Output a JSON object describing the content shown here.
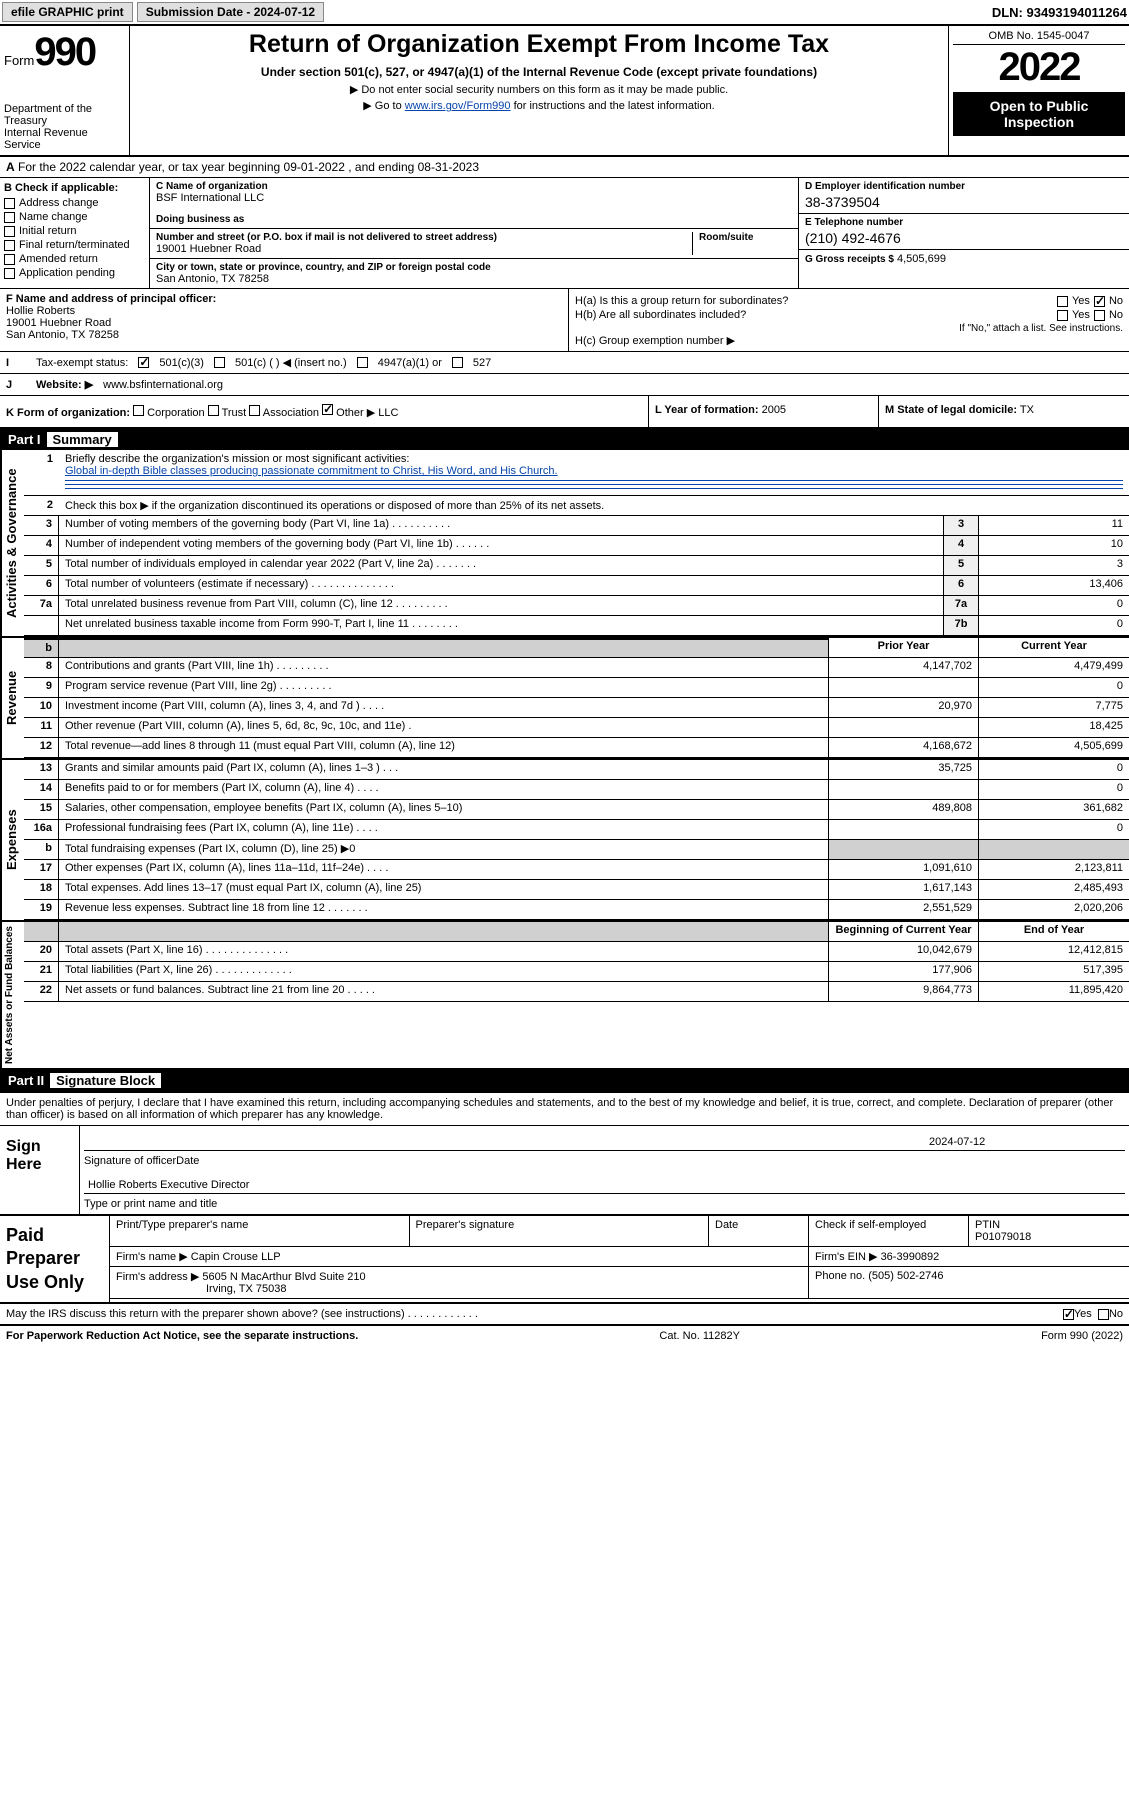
{
  "topbar": {
    "efile_label": "efile GRAPHIC print",
    "submission_label": "Submission Date - 2024-07-12",
    "dln_label": "DLN: 93493194011264"
  },
  "header": {
    "form_prefix": "Form",
    "form_number": "990",
    "title": "Return of Organization Exempt From Income Tax",
    "subtitle": "Under section 501(c), 527, or 4947(a)(1) of the Internal Revenue Code (except private foundations)",
    "note1": "▶ Do not enter social security numbers on this form as it may be made public.",
    "note2_pre": "▶ Go to ",
    "note2_link": "www.irs.gov/Form990",
    "note2_post": " for instructions and the latest information.",
    "dept": "Department of the Treasury\nInternal Revenue Service",
    "omb": "OMB No. 1545-0047",
    "year": "2022",
    "open_public": "Open to Public Inspection"
  },
  "line_a": {
    "text": "For the 2022 calendar year, or tax year beginning 09-01-2022    , and ending 08-31-2023",
    "prefix": "A"
  },
  "section_b": {
    "header": "B Check if applicable:",
    "items": [
      "Address change",
      "Name change",
      "Initial return",
      "Final return/terminated",
      "Amended return",
      "Application pending"
    ]
  },
  "section_c": {
    "name_label": "C Name of organization",
    "name": "BSF International LLC",
    "dba_label": "Doing business as",
    "dba": "",
    "addr_label": "Number and street (or P.O. box if mail is not delivered to street address)",
    "room_label": "Room/suite",
    "addr": "19001 Huebner Road",
    "city_label": "City or town, state or province, country, and ZIP or foreign postal code",
    "city": "San Antonio, TX  78258"
  },
  "section_d": {
    "ein_label": "D Employer identification number",
    "ein": "38-3739504",
    "phone_label": "E Telephone number",
    "phone": "(210) 492-4676",
    "gross_label": "G Gross receipts $",
    "gross": "4,505,699"
  },
  "section_f": {
    "label": "F Name and address of principal officer:",
    "name": "Hollie Roberts",
    "addr1": "19001 Huebner Road",
    "addr2": "San Antonio, TX  78258"
  },
  "section_h": {
    "a_label": "H(a)  Is this a group return for subordinates?",
    "b_label": "H(b)  Are all subordinates included?",
    "b_note": "If \"No,\" attach a list. See instructions.",
    "c_label": "H(c)  Group exemption number ▶",
    "yes": "Yes",
    "no": "No"
  },
  "section_i": {
    "label": "Tax-exempt status:",
    "opt1": "501(c)(3)",
    "opt2": "501(c) (   ) ◀ (insert no.)",
    "opt3": "4947(a)(1) or",
    "opt4": "527"
  },
  "section_j": {
    "label": "Website: ▶",
    "value": "www.bsfinternational.org"
  },
  "section_k": {
    "label": "K Form of organization:",
    "opts": [
      "Corporation",
      "Trust",
      "Association",
      "Other ▶"
    ],
    "other_val": "LLC",
    "l_label": "L Year of formation:",
    "l_val": "2005",
    "m_label": "M State of legal domicile:",
    "m_val": "TX"
  },
  "part1": {
    "num": "Part I",
    "title": "Summary",
    "q1_label": "Briefly describe the organization's mission or most significant activities:",
    "q1_text": "Global in-depth Bible classes producing passionate commitment to Christ, His Word, and His Church.",
    "q2_label": "Check this box ▶        if the organization discontinued its operations or disposed of more than 25% of its net assets.",
    "lines_gov": [
      {
        "n": "3",
        "t": "Number of voting members of the governing body (Part VI, line 1a)   .    .    .    .    .    .    .    .    .    .",
        "box": "3",
        "v": "11"
      },
      {
        "n": "4",
        "t": "Number of independent voting members of the governing body (Part VI, line 1b)   .    .    .    .    .    .",
        "box": "4",
        "v": "10"
      },
      {
        "n": "5",
        "t": "Total number of individuals employed in calendar year 2022 (Part V, line 2a)   .    .    .    .    .    .    .",
        "box": "5",
        "v": "3"
      },
      {
        "n": "6",
        "t": "Total number of volunteers (estimate if necessary)   .    .    .    .    .    .    .    .    .    .    .    .    .    .",
        "box": "6",
        "v": "13,406"
      },
      {
        "n": "7a",
        "t": "Total unrelated business revenue from Part VIII, column (C), line 12   .    .    .    .    .    .    .    .    .",
        "box": "7a",
        "v": "0"
      },
      {
        "n": "",
        "t": "Net unrelated business taxable income from Form 990-T, Part I, line 11   .    .    .    .    .    .    .    .",
        "box": "7b",
        "v": "0"
      }
    ],
    "col_prior": "Prior Year",
    "col_current": "Current Year",
    "lines_rev": [
      {
        "n": "8",
        "t": "Contributions and grants (Part VIII, line 1h)   .    .    .    .    .    .    .    .    .",
        "p": "4,147,702",
        "c": "4,479,499"
      },
      {
        "n": "9",
        "t": "Program service revenue (Part VIII, line 2g)   .    .    .    .    .    .    .    .    .",
        "p": "",
        "c": "0"
      },
      {
        "n": "10",
        "t": "Investment income (Part VIII, column (A), lines 3, 4, and 7d )   .    .    .    .",
        "p": "20,970",
        "c": "7,775"
      },
      {
        "n": "11",
        "t": "Other revenue (Part VIII, column (A), lines 5, 6d, 8c, 9c, 10c, and 11e)   .",
        "p": "",
        "c": "18,425"
      },
      {
        "n": "12",
        "t": "Total revenue—add lines 8 through 11 (must equal Part VIII, column (A), line 12)",
        "p": "4,168,672",
        "c": "4,505,699"
      }
    ],
    "lines_exp": [
      {
        "n": "13",
        "t": "Grants and similar amounts paid (Part IX, column (A), lines 1–3 )   .    .    .",
        "p": "35,725",
        "c": "0"
      },
      {
        "n": "14",
        "t": "Benefits paid to or for members (Part IX, column (A), line 4)   .    .    .    .",
        "p": "",
        "c": "0"
      },
      {
        "n": "15",
        "t": "Salaries, other compensation, employee benefits (Part IX, column (A), lines 5–10)",
        "p": "489,808",
        "c": "361,682"
      },
      {
        "n": "16a",
        "t": "Professional fundraising fees (Part IX, column (A), line 11e)   .    .    .    .",
        "p": "",
        "c": "0"
      },
      {
        "n": "b",
        "t": "Total fundraising expenses (Part IX, column (D), line 25) ▶0",
        "p": "",
        "c": "",
        "shaded": true
      },
      {
        "n": "17",
        "t": "Other expenses (Part IX, column (A), lines 11a–11d, 11f–24e)   .    .    .    .",
        "p": "1,091,610",
        "c": "2,123,811"
      },
      {
        "n": "18",
        "t": "Total expenses. Add lines 13–17 (must equal Part IX, column (A), line 25)",
        "p": "1,617,143",
        "c": "2,485,493"
      },
      {
        "n": "19",
        "t": "Revenue less expenses. Subtract line 18 from line 12   .    .    .    .    .    .    .",
        "p": "2,551,529",
        "c": "2,020,206"
      }
    ],
    "col_begin": "Beginning of Current Year",
    "col_end": "End of Year",
    "lines_net": [
      {
        "n": "20",
        "t": "Total assets (Part X, line 16)   .    .    .    .    .    .    .    .    .    .    .    .    .    .",
        "p": "10,042,679",
        "c": "12,412,815"
      },
      {
        "n": "21",
        "t": "Total liabilities (Part X, line 26)   .    .    .    .    .    .    .    .    .    .    .    .    .",
        "p": "177,906",
        "c": "517,395"
      },
      {
        "n": "22",
        "t": "Net assets or fund balances. Subtract line 21 from line 20   .    .    .    .    .",
        "p": "9,864,773",
        "c": "11,895,420"
      }
    ],
    "side_gov": "Activities & Governance",
    "side_rev": "Revenue",
    "side_exp": "Expenses",
    "side_net": "Net Assets or Fund Balances"
  },
  "part2": {
    "num": "Part II",
    "title": "Signature Block",
    "intro": "Under penalties of perjury, I declare that I have examined this return, including accompanying schedules and statements, and to the best of my knowledge and belief, it is true, correct, and complete. Declaration of preparer (other than officer) is based on all information of which preparer has any knowledge.",
    "sign_here": "Sign Here",
    "sig_officer": "Signature of officer",
    "sig_date": "Date",
    "sig_date_val": "2024-07-12",
    "sig_name": "Hollie Roberts Executive Director",
    "sig_name_label": "Type or print name and title",
    "paid_prep": "Paid Preparer Use Only",
    "prep_name_label": "Print/Type preparer's name",
    "prep_sig_label": "Preparer's signature",
    "prep_date_label": "Date",
    "prep_check_label": "Check        if self-employed",
    "ptin_label": "PTIN",
    "ptin": "P01079018",
    "firm_name_label": "Firm's name      ▶",
    "firm_name": "Capin Crouse LLP",
    "firm_ein_label": "Firm's EIN ▶",
    "firm_ein": "36-3990892",
    "firm_addr_label": "Firm's address ▶",
    "firm_addr1": "5605 N MacArthur Blvd Suite 210",
    "firm_addr2": "Irving, TX  75038",
    "firm_phone_label": "Phone no.",
    "firm_phone": "(505) 502-2746",
    "discuss": "May the IRS discuss this return with the preparer shown above? (see instructions)   .    .    .    .    .    .    .    .    .    .    .    .",
    "discuss_yes": "Yes",
    "discuss_no": "No"
  },
  "footer": {
    "left": "For Paperwork Reduction Act Notice, see the separate instructions.",
    "mid": "Cat. No. 11282Y",
    "right": "Form 990 (2022)"
  }
}
